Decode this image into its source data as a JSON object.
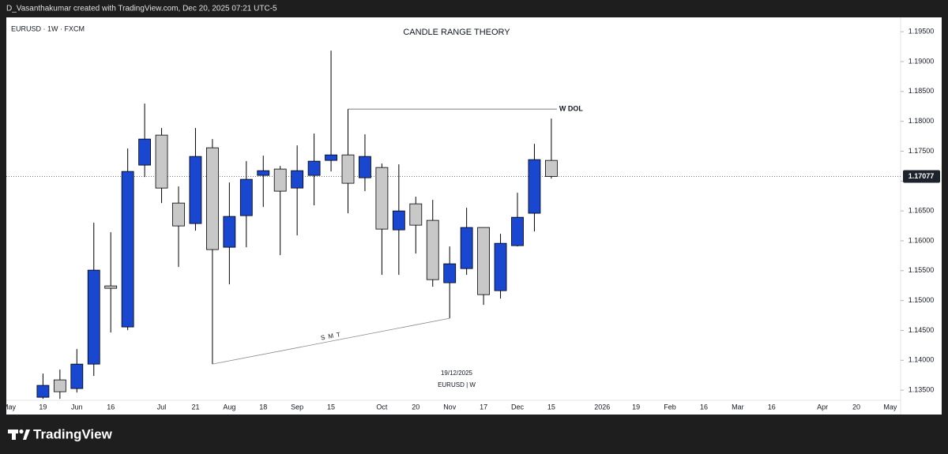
{
  "header": {
    "text": "D_Vasanthakumar created with TradingView.com, Dec 20, 2025 07:21 UTC-5"
  },
  "chart_data": {
    "type": "candlestick",
    "title": "CANDLE RANGE THEORY",
    "symbol": "EURUSD · 1W · FXCM",
    "categories": [
      "May",
      null,
      "19",
      null,
      "Jun",
      null,
      "16",
      null,
      null,
      "Jul",
      null,
      "21",
      null,
      "Aug",
      null,
      "18",
      null,
      "Sep",
      null,
      "15",
      null,
      null,
      "Oct",
      null,
      "20",
      null,
      "Nov",
      null,
      "17",
      null,
      "Dec",
      null,
      "15",
      null,
      null,
      "2026",
      null,
      "19",
      null,
      "Feb",
      null,
      "16",
      null,
      "Mar",
      null,
      "16",
      null,
      null,
      "Apr",
      null,
      "20",
      null,
      "May"
    ],
    "open": [
      null,
      null,
      1.13381,
      1.13672,
      1.13527,
      1.13936,
      1.15245,
      1.14558,
      1.17267,
      1.17769,
      1.16632,
      1.16289,
      1.17557,
      1.15892,
      1.16421,
      1.17095,
      1.17201,
      1.16883,
      1.17095,
      1.17346,
      1.17438,
      1.17055,
      1.17227,
      1.16183,
      1.16619,
      1.16342,
      1.15298,
      1.15535,
      1.16223,
      1.15165,
      1.15919,
      1.16461,
      1.17346,
      null,
      null,
      null,
      null,
      null,
      null,
      null,
      null,
      null,
      null,
      null,
      null,
      null,
      null,
      null,
      null,
      null,
      null,
      null,
      null
    ],
    "high": [
      null,
      null,
      1.13778,
      1.13844,
      1.14188,
      1.16302,
      1.16143,
      1.17544,
      1.18297,
      1.17888,
      1.1691,
      1.17888,
      1.17703,
      1.16976,
      1.17333,
      1.17425,
      1.17253,
      1.17597,
      1.17795,
      1.19183,
      1.18205,
      1.17782,
      1.17293,
      1.1728,
      1.16738,
      1.16685,
      1.15906,
      1.16553,
      1.16223,
      1.16117,
      1.16804,
      1.17623,
      1.18046,
      null,
      null,
      null,
      null,
      null,
      null,
      null,
      null,
      null,
      null,
      null,
      null,
      null,
      null,
      null,
      null,
      null,
      null,
      null,
      null
    ],
    "low": [
      null,
      null,
      1.13355,
      1.13355,
      1.13461,
      1.13738,
      1.14465,
      1.14505,
      1.17068,
      1.16632,
      1.15562,
      1.1617,
      1.13936,
      1.15271,
      1.15892,
      1.16566,
      1.1576,
      1.16091,
      1.16593,
      1.17161,
      1.16461,
      1.16831,
      1.1543,
      1.1543,
      1.15787,
      1.15232,
      1.14703,
      1.1543,
      1.14928,
      1.15033,
      1.15906,
      1.16157,
      1.17042,
      null,
      null,
      null,
      null,
      null,
      null,
      null,
      null,
      null,
      null,
      null,
      null,
      null,
      null,
      null,
      null,
      null,
      null,
      null,
      null
    ],
    "close": [
      null,
      null,
      1.1358,
      1.13474,
      1.13936,
      1.15509,
      1.15205,
      1.17161,
      1.17703,
      1.16883,
      1.16249,
      1.17412,
      1.15853,
      1.16408,
      1.17029,
      1.17174,
      1.16831,
      1.17174,
      1.17333,
      1.17438,
      1.16963,
      1.17412,
      1.16196,
      1.165,
      1.16262,
      1.1535,
      1.15615,
      1.16223,
      1.15099,
      1.15958,
      1.16394,
      1.17359,
      1.17077,
      null,
      null,
      null,
      null,
      null,
      null,
      null,
      null,
      null,
      null,
      null,
      null,
      null,
      null,
      null,
      null,
      null,
      null,
      null,
      null
    ],
    "up_color": "#1a47cf",
    "down_color": "#c8c8c8",
    "ylim": [
      1.1333,
      1.1974
    ],
    "yticks": [
      {
        "value": 1.135,
        "label": "1.13500"
      },
      {
        "value": 1.14,
        "label": "1.14000"
      },
      {
        "value": 1.145,
        "label": "1.14500"
      },
      {
        "value": 1.15,
        "label": "1.15000"
      },
      {
        "value": 1.155,
        "label": "1.15500"
      },
      {
        "value": 1.16,
        "label": "1.16000"
      },
      {
        "value": 1.165,
        "label": "1.16500"
      },
      {
        "value": 1.17,
        "label": "1.17000"
      },
      {
        "value": 1.175,
        "label": "1.17500"
      },
      {
        "value": 1.18,
        "label": "1.18000"
      },
      {
        "value": 1.185,
        "label": "1.18500"
      },
      {
        "value": 1.19,
        "label": "1.19000"
      },
      {
        "value": 1.195,
        "label": "1.19500"
      }
    ],
    "last_price": {
      "value": 1.17077,
      "label": "1.17077"
    },
    "annotations": [
      "W DOL",
      "S M T"
    ],
    "watermark": [
      "19/12/2025",
      "EURUSD | W"
    ]
  },
  "footer": {
    "brand": "TradingView"
  }
}
